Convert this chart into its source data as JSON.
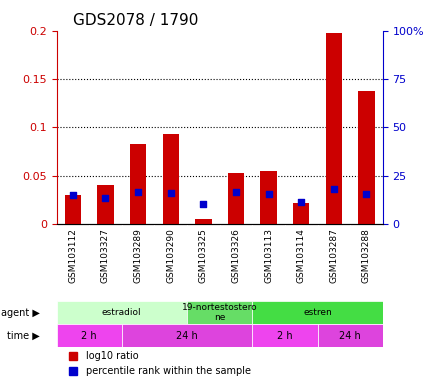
{
  "title": "GDS2078 / 1790",
  "samples": [
    "GSM103112",
    "GSM103327",
    "GSM103289",
    "GSM103290",
    "GSM103325",
    "GSM103326",
    "GSM103113",
    "GSM103114",
    "GSM103287",
    "GSM103288"
  ],
  "log10_ratio": [
    0.03,
    0.04,
    0.083,
    0.093,
    0.005,
    0.053,
    0.055,
    0.022,
    0.198,
    0.138
  ],
  "percentile_rank": [
    0.15,
    0.133,
    0.167,
    0.161,
    0.1,
    0.166,
    0.156,
    0.111,
    0.178,
    0.156
  ],
  "ylim_left": [
    0,
    0.2
  ],
  "ylim_right": [
    0,
    100
  ],
  "yticks_left": [
    0,
    0.05,
    0.1,
    0.15,
    0.2
  ],
  "yticks_right": [
    0,
    25,
    50,
    75,
    100
  ],
  "ytick_labels_left": [
    "0",
    "0.05",
    "0.1",
    "0.15",
    "0.2"
  ],
  "ytick_labels_right": [
    "0",
    "25",
    "50",
    "75",
    "100%"
  ],
  "hlines": [
    0.05,
    0.1,
    0.15
  ],
  "bar_color": "#cc0000",
  "scatter_color": "#0000cc",
  "agent_groups": [
    {
      "label": "estradiol",
      "start": 0,
      "end": 4,
      "color": "#ccffcc"
    },
    {
      "label": "19-nortestostero\nne",
      "start": 4,
      "end": 6,
      "color": "#66dd66"
    },
    {
      "label": "estren",
      "start": 6,
      "end": 10,
      "color": "#44dd44"
    }
  ],
  "time_groups": [
    {
      "label": "2 h",
      "start": 0,
      "end": 2,
      "color": "#ee44ee"
    },
    {
      "label": "24 h",
      "start": 2,
      "end": 6,
      "color": "#dd44dd"
    },
    {
      "label": "2 h",
      "start": 6,
      "end": 8,
      "color": "#ee44ee"
    },
    {
      "label": "24 h",
      "start": 8,
      "end": 10,
      "color": "#dd44dd"
    }
  ],
  "legend_bar_label": "log10 ratio",
  "legend_scatter_label": "percentile rank within the sample",
  "bg_color": "#ffffff",
  "tick_area_bg": "#dddddd"
}
